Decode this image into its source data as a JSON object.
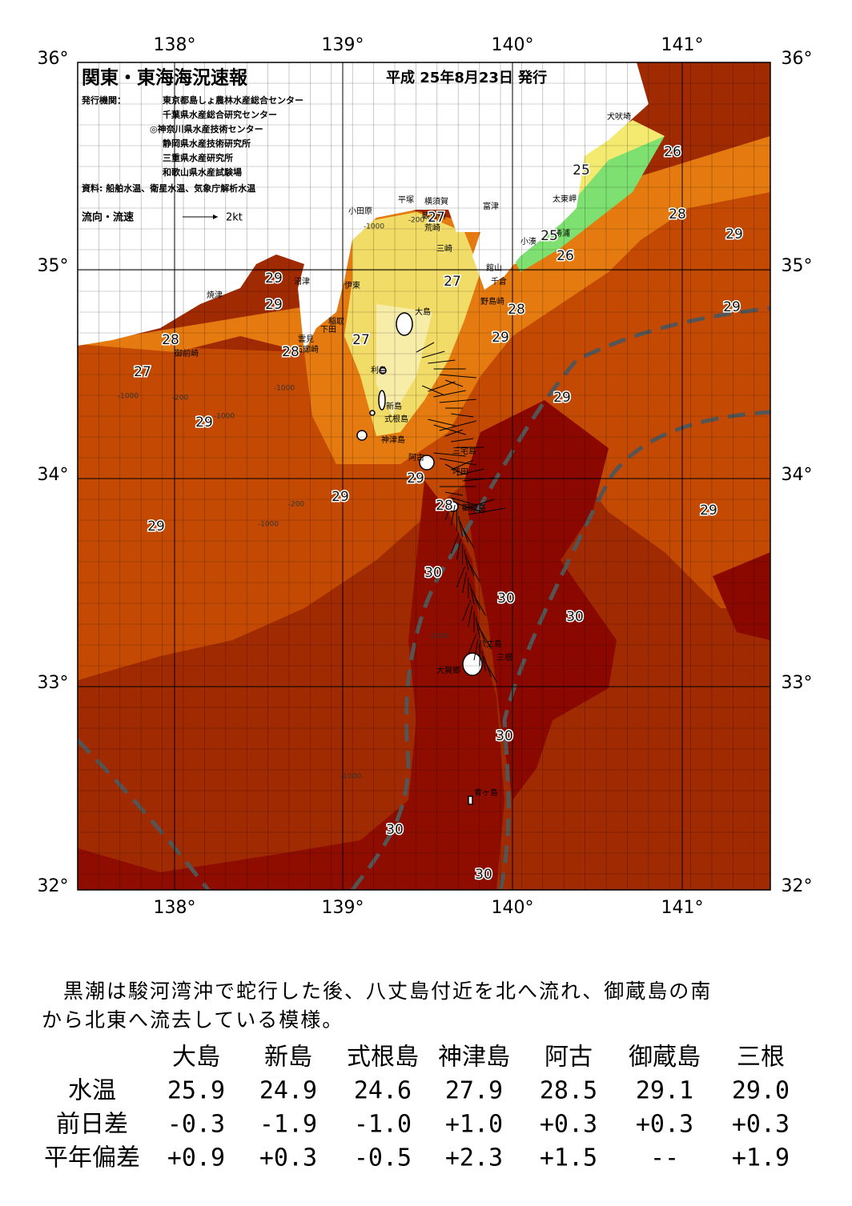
{
  "header": {
    "title": "関東・東海海況速報",
    "date": "平成 25年8月23日 発行",
    "issuer_label": "発行機関：",
    "issuers": [
      "東京都島しょ農林水産総合センター",
      "千葉県水産総合研究センター",
      "◎神奈川県水産技術センター",
      "静岡県水産技術研究所",
      "三重県水産研究所",
      "和歌山県水産試験場"
    ],
    "source": "資料: 船舶水温、衛星水温、気象庁解析水温",
    "legend_label": "流向・流速",
    "legend_speed": "2kt"
  },
  "map": {
    "lon_labels": [
      "138°",
      "139°",
      "140°",
      "141°"
    ],
    "lat_labels": [
      "36°",
      "35°",
      "34°",
      "33°",
      "32°"
    ],
    "places": [
      "犬吠埼",
      "太東岬",
      "勝浦",
      "小湊",
      "富津",
      "館山",
      "千倉",
      "野島崎",
      "横須賀",
      "平塚",
      "観音崎",
      "荒崎",
      "三崎",
      "小田原",
      "沼津",
      "伊東",
      "焼津",
      "稲取",
      "下田",
      "雲見",
      "石廊崎",
      "御前崎",
      "大島",
      "利島",
      "新島",
      "式根島",
      "神津島",
      "三宅島",
      "阿古",
      "坪田",
      "御蔵島",
      "八丈島",
      "三根",
      "大賀郷",
      "青ヶ島"
    ],
    "contour_labels": [
      "29",
      "29",
      "28",
      "27",
      "28",
      "27",
      "27",
      "27",
      "28",
      "29",
      "26",
      "25",
      "28",
      "29",
      "26",
      "25",
      "29",
      "29",
      "29",
      "29",
      "29",
      "28",
      "29",
      "29",
      "30",
      "30",
      "30",
      "30",
      "30",
      "30"
    ],
    "depth_labels": [
      "-1000",
      "-200",
      "-1000",
      "-200",
      "-1000",
      "-1000",
      "-200",
      "-1000",
      "-1000",
      "-1000"
    ]
  },
  "commentary": [
    "　黒潮は駿河湾沖で蛇行した後、八丈島付近を北へ流れ、御蔵島の南",
    "から北東へ流去している模様。"
  ],
  "table": {
    "columns": [
      "大島",
      "新島",
      "式根島",
      "神津島",
      "阿古",
      "御蔵島",
      "三根"
    ],
    "rows": [
      {
        "label": "水温",
        "values": [
          "25.9",
          "24.9",
          "24.6",
          "27.9",
          "28.5",
          "29.1",
          "29.0"
        ]
      },
      {
        "label": "前日差",
        "values": [
          "-0.3",
          "-1.9",
          "-1.0",
          "+1.0",
          "+0.3",
          "+0.3",
          "+0.3"
        ]
      },
      {
        "label": "平年偏差",
        "values": [
          "+0.9",
          "+0.3",
          "-0.5",
          "+2.3",
          "+1.5",
          "--",
          "+1.9"
        ]
      }
    ]
  }
}
